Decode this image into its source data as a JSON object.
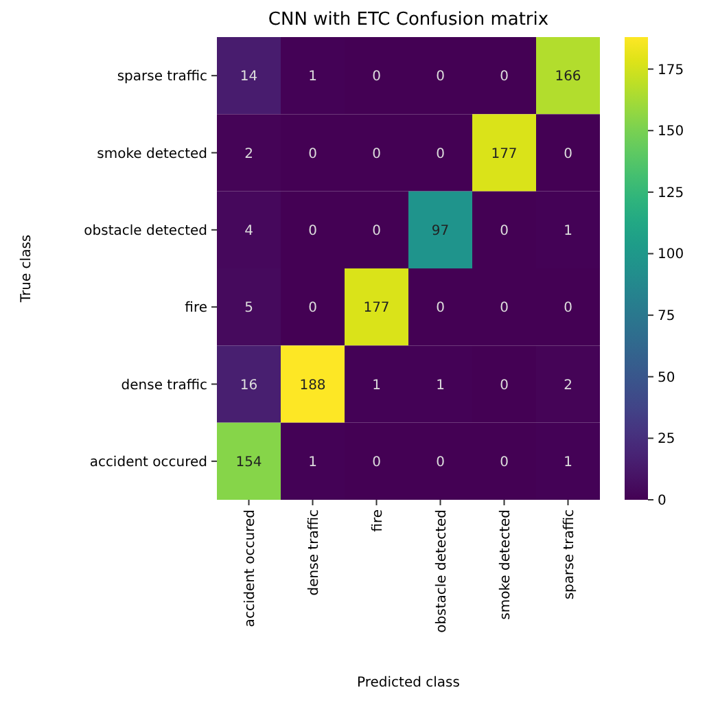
{
  "chart_data": {
    "type": "heatmap",
    "title": "CNN with ETC Confusion matrix",
    "xlabel": "Predicted class",
    "ylabel": "True class",
    "categories": [
      "accident occured",
      "dense traffic",
      "fire",
      "obstacle detected",
      "smoke detected",
      "sparse traffic"
    ],
    "y_categories": [
      "sparse traffic",
      "smoke detected",
      "obstacle detected",
      "fire",
      "dense traffic",
      "accident occured"
    ],
    "cells": [
      [
        14,
        1,
        0,
        0,
        0,
        166
      ],
      [
        2,
        0,
        0,
        0,
        177,
        0
      ],
      [
        4,
        0,
        0,
        97,
        0,
        1
      ],
      [
        5,
        0,
        177,
        0,
        0,
        0
      ],
      [
        16,
        188,
        1,
        1,
        0,
        2
      ],
      [
        154,
        1,
        0,
        0,
        0,
        1
      ]
    ],
    "clim": [
      0,
      188
    ],
    "cticks": [
      0,
      25,
      50,
      75,
      100,
      125,
      150,
      175
    ],
    "data_labels": true
  }
}
